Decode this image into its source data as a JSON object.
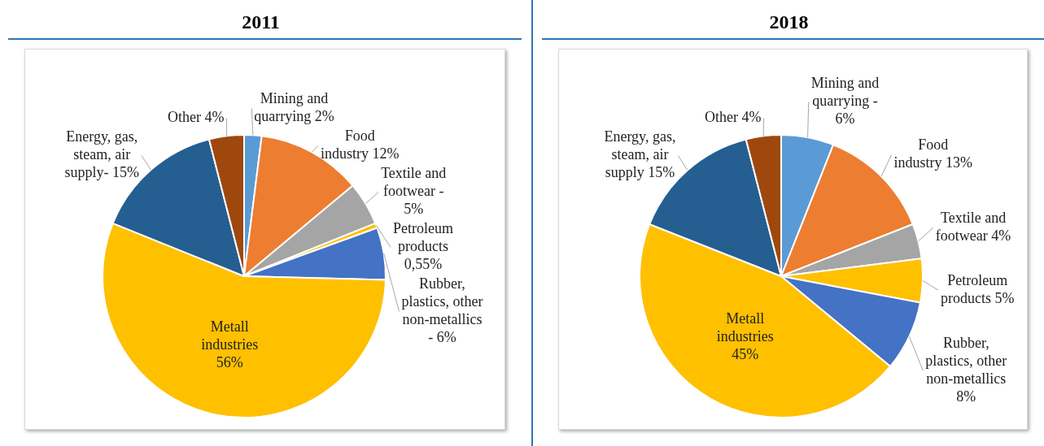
{
  "chart_data": [
    {
      "type": "pie",
      "title": "2011",
      "categories": [
        "Mining and quarrying",
        "Food industry",
        "Textile and footwear -",
        "Petroleum products",
        "Rubber, plastics, other non-metallics -",
        "Metall industries",
        "Energy, gas, steam, air supply-",
        "Other"
      ],
      "values": [
        2,
        12,
        5,
        0.55,
        6,
        56,
        15,
        4
      ],
      "value_labels": [
        "2%",
        "12%",
        "5%",
        "0,55%",
        "6%",
        "56%",
        "15%",
        "4%"
      ],
      "colors": [
        "#5b9bd5",
        "#ed7d31",
        "#a5a5a5",
        "#ffc000",
        "#4472c4",
        "#ffc000",
        "#255e91",
        "#9e480e"
      ],
      "legend": false
    },
    {
      "type": "pie",
      "title": "2018",
      "categories": [
        "Mining and quarrying -",
        "Food industry",
        "Textile and footwear",
        "Petroleum products",
        "Rubber, plastics, other non-metallics",
        "Metall industries",
        "Energy, gas, steam, air supply",
        "Other"
      ],
      "values": [
        6,
        13,
        4,
        5,
        8,
        45,
        15,
        4
      ],
      "value_labels": [
        "6%",
        "13%",
        "4%",
        "5%",
        "8%",
        "45%",
        "15%",
        "4%"
      ],
      "colors": [
        "#5b9bd5",
        "#ed7d31",
        "#a5a5a5",
        "#ffc000",
        "#4472c4",
        "#ffc000",
        "#255e91",
        "#9e480e"
      ],
      "legend": false
    }
  ]
}
